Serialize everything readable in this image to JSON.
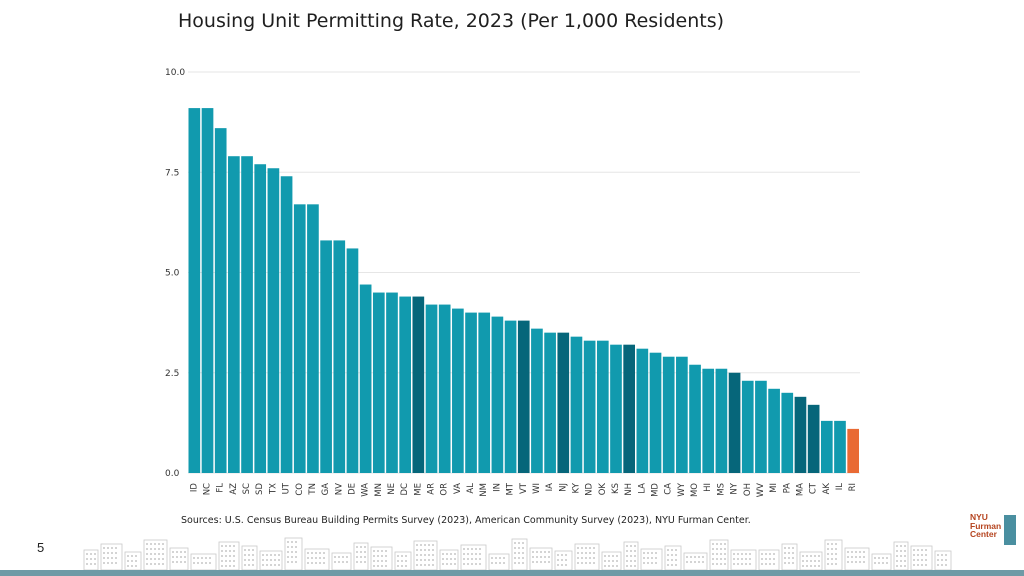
{
  "slide": {
    "page_number": "5"
  },
  "source_note": "Sources: U.S. Census Bureau Building Permits Survey (2023), American Community Survey (2023), NYU Furman Center.",
  "logo": {
    "lines": [
      "NYU",
      "Furman",
      "Center"
    ]
  },
  "colors": {
    "bar": "#119aae",
    "highlight": "#06667a",
    "accent": "#e96a34",
    "grid": "#e6e6e6"
  },
  "chart_data": {
    "type": "bar",
    "title": "Housing Unit Permitting Rate, 2023 (Per 1,000 Residents)",
    "xlabel": "",
    "ylabel": "",
    "ylim": [
      0,
      10
    ],
    "y_ticks": [
      "0.0",
      "2.5",
      "5.0",
      "7.5",
      "10.0"
    ],
    "grid": true,
    "categories": [
      "ID",
      "NC",
      "FL",
      "AZ",
      "SC",
      "SD",
      "TX",
      "UT",
      "CO",
      "TN",
      "GA",
      "NV",
      "DE",
      "WA",
      "MN",
      "NE",
      "DC",
      "ME",
      "AR",
      "OR",
      "VA",
      "AL",
      "NM",
      "IN",
      "MT",
      "VT",
      "WI",
      "IA",
      "NJ",
      "KY",
      "ND",
      "OK",
      "KS",
      "NH",
      "LA",
      "MD",
      "CA",
      "WY",
      "MO",
      "HI",
      "MS",
      "NY",
      "OH",
      "WV",
      "MI",
      "PA",
      "MA",
      "CT",
      "AK",
      "IL",
      "RI"
    ],
    "values": [
      9.1,
      9.1,
      8.6,
      7.9,
      7.9,
      7.7,
      7.6,
      7.4,
      6.7,
      6.7,
      5.8,
      5.8,
      5.6,
      4.7,
      4.5,
      4.5,
      4.4,
      4.4,
      4.2,
      4.2,
      4.1,
      4.0,
      4.0,
      3.9,
      3.8,
      3.8,
      3.6,
      3.5,
      3.5,
      3.4,
      3.3,
      3.3,
      3.2,
      3.2,
      3.1,
      3.0,
      2.9,
      2.9,
      2.7,
      2.6,
      2.6,
      2.5,
      2.3,
      2.3,
      2.1,
      2.0,
      1.9,
      1.7,
      1.3,
      1.3,
      1.1
    ],
    "highlight": [
      "ME",
      "VT",
      "NJ",
      "NH",
      "NY",
      "MA",
      "CT"
    ],
    "accent": [
      "RI"
    ]
  }
}
